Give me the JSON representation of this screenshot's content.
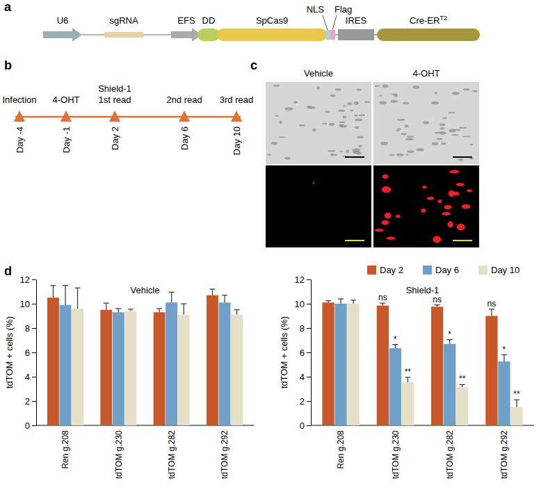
{
  "panel_labels": [
    "a",
    "b",
    "c",
    "d"
  ],
  "construct": {
    "elements": [
      {
        "text": "U6",
        "color": "#9bb0ae"
      },
      {
        "text": "sgRNA",
        "color": "#e6d2a2"
      },
      {
        "text": "EFS",
        "color": "#a9adad"
      },
      {
        "text": "DD",
        "color": "#b8cf5e"
      },
      {
        "text": "SpCas9",
        "color": "#e8c84c"
      },
      {
        "text": "NLS",
        "color": "#9fd3e6"
      },
      {
        "text": "Flag",
        "color": "#eaa3c5"
      },
      {
        "text": "IRES",
        "color": "#999999"
      },
      {
        "text": "Cre-ER",
        "superscript": "T2",
        "color": "#a6963f"
      }
    ]
  },
  "timeline": {
    "color": "#e0703a",
    "events": [
      {
        "day": "Day -4",
        "labels": [
          "Infection"
        ]
      },
      {
        "day": "Day -1",
        "labels": [
          "4-OHT"
        ]
      },
      {
        "day": "Day 2",
        "labels": [
          "Shield-1",
          "1st read"
        ]
      },
      {
        "day": "Day 6",
        "labels": [
          "2nd read"
        ]
      },
      {
        "day": "Day 10",
        "labels": [
          "3rd read"
        ]
      }
    ]
  },
  "images": {
    "columns": [
      "Vehicle",
      "4-OHT"
    ]
  },
  "chart_data": [
    {
      "type": "bar",
      "title": "Vehicle",
      "y_label": "tdTOM + cells (%)",
      "categories": [
        "Ren g.208",
        "tdTOM g.230",
        "tdTOM g.282",
        "tdTOM g.292"
      ],
      "series": [
        {
          "color": "#c8582a",
          "values": [
            10.5,
            9.5,
            9.3,
            10.7
          ],
          "errors": [
            1.0,
            0.55,
            0.3,
            0.5
          ]
        },
        {
          "color": "#6fa0c8",
          "values": [
            9.9,
            9.3,
            10.1,
            10.1
          ],
          "errors": [
            1.6,
            0.3,
            0.85,
            0.6
          ]
        },
        {
          "color": "#e6dfc8",
          "values": [
            9.6,
            9.4,
            9.1,
            9.1
          ],
          "errors": [
            1.7,
            0.15,
            0.9,
            0.4
          ]
        }
      ],
      "ylim": [
        0,
        12
      ],
      "yticks": [
        0,
        2,
        4,
        6,
        8,
        10,
        12
      ]
    },
    {
      "type": "bar",
      "title": "Shield-1",
      "y_label": "tdTOM + cells (%)",
      "categories": [
        "Ren g.208",
        "tdTOM g.230",
        "tdTOM g.282",
        "tdTOM g.292"
      ],
      "series": [
        {
          "name": "Day 2",
          "color": "#c8582a",
          "values": [
            10.1,
            9.85,
            9.75,
            9.0
          ],
          "errors": [
            0.15,
            0.2,
            0.15,
            0.55
          ],
          "significance": [
            null,
            "ns",
            "ns",
            "ns"
          ]
        },
        {
          "name": "Day 6",
          "color": "#6fa0c8",
          "values": [
            10.0,
            6.35,
            6.7,
            5.25
          ],
          "errors": [
            0.4,
            0.3,
            0.35,
            0.55
          ],
          "significance": [
            null,
            "*",
            "*",
            "*"
          ]
        },
        {
          "name": "Day 10",
          "color": "#e6dfc8",
          "values": [
            10.0,
            3.55,
            3.15,
            1.5
          ],
          "errors": [
            0.3,
            0.4,
            0.2,
            0.6
          ],
          "significance": [
            null,
            "**",
            "**",
            "**"
          ]
        }
      ],
      "ylim": [
        0,
        12
      ],
      "yticks": [
        0,
        2,
        4,
        6,
        8,
        10,
        12
      ],
      "legend": "top-right"
    }
  ]
}
